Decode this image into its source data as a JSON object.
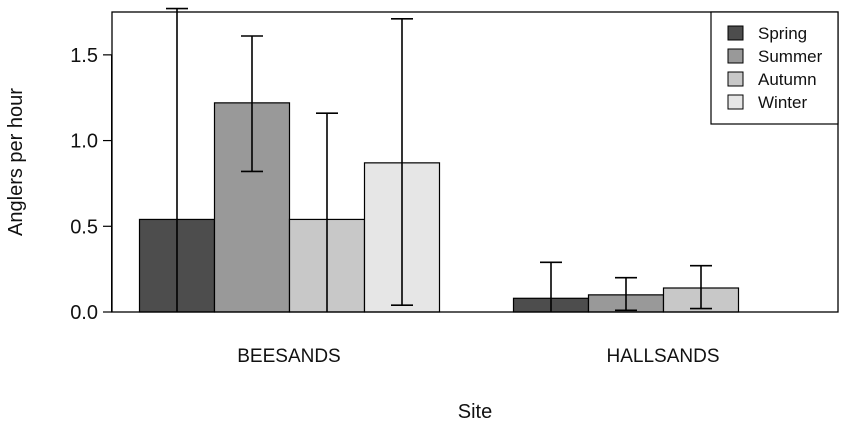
{
  "chart_data": {
    "type": "bar",
    "xlabel": "Site",
    "ylabel": "Anglers per hour",
    "ylim": [
      0,
      1.75
    ],
    "yticks": [
      0.0,
      0.5,
      1.0,
      1.5
    ],
    "ytick_labels": [
      "0.0",
      "0.5",
      "1.0",
      "1.5"
    ],
    "categories": [
      "BEESANDS",
      "HALLSANDS"
    ],
    "series": [
      {
        "name": "Spring",
        "color": "#4d4d4d",
        "values": [
          0.54,
          0.08
        ],
        "err_low": [
          0.0,
          0.0
        ],
        "err_high": [
          1.77,
          0.29
        ]
      },
      {
        "name": "Summer",
        "color": "#999999",
        "values": [
          1.22,
          0.1
        ],
        "err_low": [
          0.82,
          0.01
        ],
        "err_high": [
          1.61,
          0.2
        ]
      },
      {
        "name": "Autumn",
        "color": "#c8c8c8",
        "values": [
          0.54,
          0.14
        ],
        "err_low": [
          0.0,
          0.02
        ],
        "err_high": [
          1.16,
          0.27
        ]
      },
      {
        "name": "Winter",
        "color": "#e6e6e6",
        "values": [
          0.87,
          null
        ],
        "err_low": [
          0.04,
          null
        ],
        "err_high": [
          1.71,
          null
        ]
      }
    ],
    "legend": {
      "position": "top-right"
    },
    "grid": false
  }
}
